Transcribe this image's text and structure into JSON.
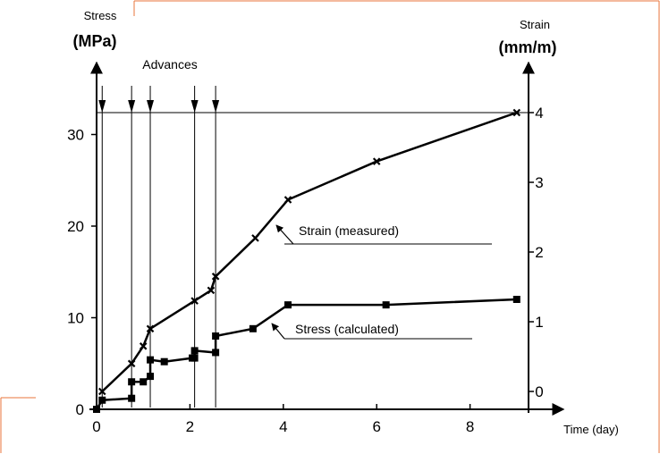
{
  "chart_data": {
    "type": "line",
    "xlabel": "Time (day)",
    "ylabel_left": [
      "Stress",
      "(MPa)"
    ],
    "ylabel_right": [
      "Strain",
      "(mm/m)"
    ],
    "advances_label": "Advances",
    "x_ticks": [
      0,
      2,
      4,
      6,
      8
    ],
    "y_left_ticks": [
      0,
      10,
      20,
      30
    ],
    "y_right_ticks": [
      0,
      1,
      2,
      3,
      4
    ],
    "xlim": [
      0,
      10
    ],
    "ylim_left": [
      0,
      32
    ],
    "ylim_right": [
      -0.2,
      4
    ],
    "advances_x": [
      0.12,
      0.75,
      1.15,
      2.1,
      2.55
    ],
    "series": [
      {
        "name": "Strain (measured)",
        "axis": "right",
        "marker": "x",
        "x": [
          0.12,
          0.75,
          1.0,
          1.15,
          2.1,
          2.45,
          2.55,
          3.4,
          4.1,
          6.0,
          9.0
        ],
        "y": [
          0.0,
          0.4,
          0.65,
          0.9,
          1.3,
          1.45,
          1.65,
          2.2,
          2.75,
          3.3,
          4.0
        ]
      },
      {
        "name": "Stress (calculated)",
        "axis": "left",
        "marker": "square",
        "x": [
          0.0,
          0.12,
          0.75,
          0.75,
          1.0,
          1.15,
          1.15,
          1.45,
          2.05,
          2.1,
          2.1,
          2.55,
          2.55,
          3.35,
          4.1,
          6.2,
          9.0
        ],
        "y": [
          0.0,
          1.0,
          1.2,
          3.0,
          3.0,
          3.6,
          5.4,
          5.2,
          5.6,
          5.6,
          6.4,
          6.2,
          8.0,
          8.8,
          11.4,
          11.4,
          12.0
        ]
      }
    ],
    "annotations": [
      {
        "text": "Strain (measured)",
        "series": 0
      },
      {
        "text": "Stress (calculated)",
        "series": 1
      }
    ]
  }
}
